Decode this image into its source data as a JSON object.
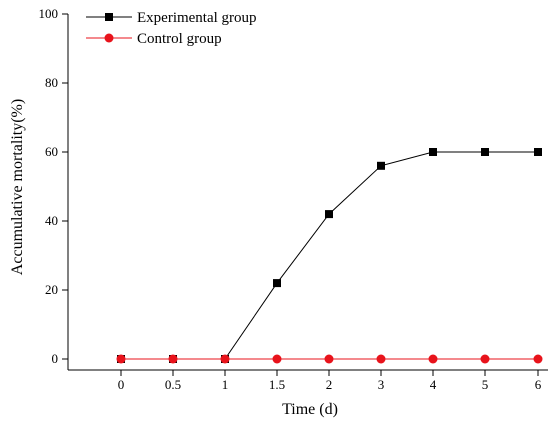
{
  "chart_data": {
    "type": "line",
    "title": "",
    "xlabel": "Time (d)",
    "ylabel": "Accumulative mortality(%)",
    "categories": [
      "0",
      "0.5",
      "1",
      "1.5",
      "2",
      "3",
      "4",
      "5",
      "6"
    ],
    "ylim": [
      0,
      100
    ],
    "yticks": [
      0,
      20,
      40,
      60,
      80,
      100
    ],
    "grid": false,
    "legend_position": "top-left",
    "series": [
      {
        "name": "Experimental group",
        "color": "#000000",
        "marker": "square",
        "values": [
          0,
          0,
          0,
          22,
          42,
          56,
          60,
          60,
          60
        ]
      },
      {
        "name": "Control group",
        "color": "#e8131b",
        "marker": "circle",
        "values": [
          0,
          0,
          0,
          0,
          0,
          0,
          0,
          0,
          0
        ]
      }
    ]
  }
}
